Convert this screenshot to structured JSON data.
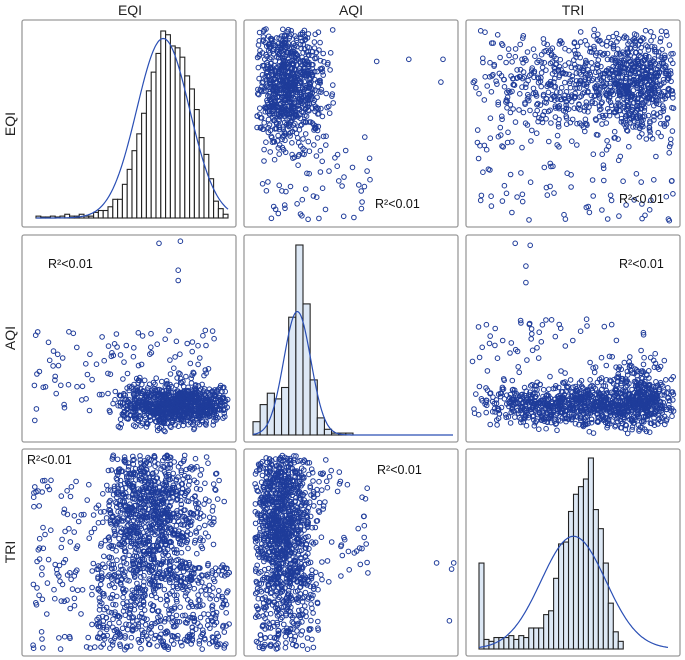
{
  "chart_data": {
    "type": "scatter-matrix",
    "variables": [
      "EQI",
      "AQI",
      "TRI"
    ],
    "r2_labels": {
      "EQI_AQI": "R²<0.01",
      "EQI_TRI": "R²<0.01",
      "AQI_EQI": "R²<0.01",
      "AQI_TRI": "R²<0.01",
      "TRI_EQI": "R²<0.01",
      "TRI_AQI": "R²<0.01"
    },
    "histograms": {
      "EQI": {
        "relative_counts": [
          0.01,
          0,
          0,
          0.01,
          0,
          0.01,
          0.02,
          0.01,
          0.01,
          0.02,
          0.01,
          0.01,
          0.03,
          0.04,
          0.04,
          0.06,
          0.1,
          0.1,
          0.18,
          0.26,
          0.36,
          0.45,
          0.56,
          0.68,
          0.78,
          0.88,
          1.0,
          0.98,
          0.92,
          0.91,
          0.86,
          0.76,
          0.69,
          0.58,
          0.43,
          0.34,
          0.21,
          0.09,
          0.05,
          0.02
        ],
        "bins_on_axis": 40,
        "fit_peak_bin": 26.5,
        "fit_sd_bins": 5.5,
        "fit_height": 0.96,
        "fill": "#ffffff"
      },
      "AQI": {
        "relative_counts": [
          0.07,
          0.16,
          0.22,
          0.19,
          0.25,
          0.62,
          1.0,
          0.69,
          0.29,
          0.09,
          0.03,
          0.01,
          0.01,
          0.01
        ],
        "bins_on_axis": 28,
        "fit_peak_bin": 6.2,
        "fit_sd_bins": 1.9,
        "fit_height": 0.65,
        "fill": "#dde8f5"
      },
      "TRI": {
        "relative_counts": [
          0.45,
          0.05,
          0.04,
          0.06,
          0.06,
          0.06,
          0.07,
          0.05,
          0.07,
          0.06,
          0.11,
          0.11,
          0.11,
          0.18,
          0.2,
          0.37,
          0.55,
          0.56,
          0.72,
          0.81,
          0.85,
          0.89,
          1.0,
          0.73,
          0.63,
          0.45,
          0.24,
          0.09,
          0.04
        ],
        "bins_on_axis": 38,
        "fit_peak_bin": 19,
        "fit_sd_bins": 6.5,
        "fit_height": 0.59,
        "fill": "#dde8f5"
      }
    },
    "colors": {
      "points": "#1f3c9a",
      "fit_line": "#2a4fb5",
      "bar_stroke": "#222222",
      "panel_border": "#9a9a9a"
    }
  }
}
